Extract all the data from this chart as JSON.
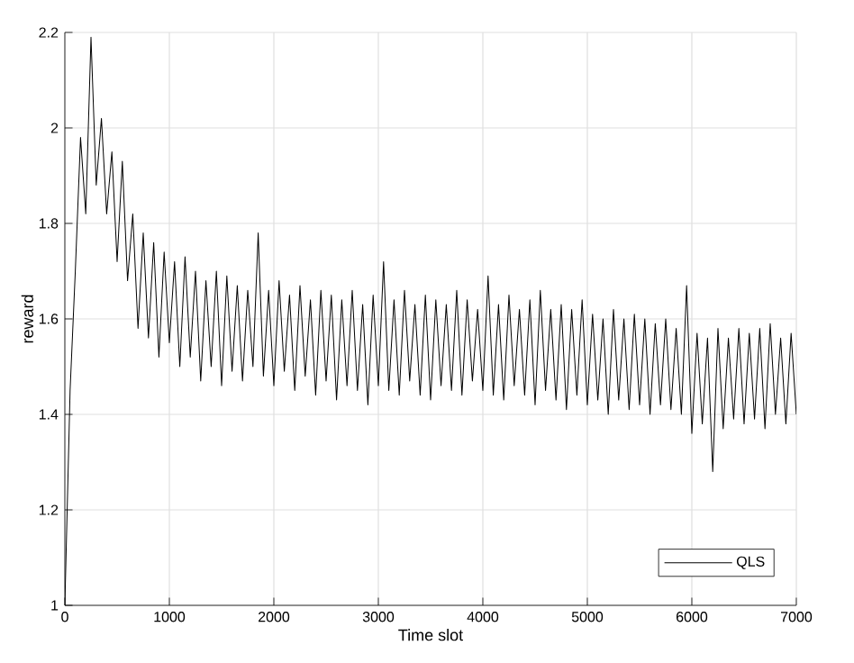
{
  "chart_data": {
    "type": "line",
    "xlabel": "Time slot",
    "ylabel": "reward",
    "xlim": [
      0,
      7000
    ],
    "ylim": [
      1,
      2.2
    ],
    "xticks": [
      0,
      1000,
      2000,
      3000,
      4000,
      5000,
      6000,
      7000
    ],
    "yticks": [
      1,
      1.2,
      1.4,
      1.6,
      1.8,
      2,
      2.2
    ],
    "grid": true,
    "legend": "bottom right",
    "marker": "none",
    "line_style": "solid",
    "series": [
      {
        "name": "QLS",
        "color": "#000000",
        "x": [
          0,
          50,
          100,
          150,
          200,
          250,
          300,
          350,
          400,
          450,
          500,
          550,
          600,
          650,
          700,
          750,
          800,
          850,
          900,
          950,
          1000,
          1050,
          1100,
          1150,
          1200,
          1250,
          1300,
          1350,
          1400,
          1450,
          1500,
          1550,
          1600,
          1650,
          1700,
          1750,
          1800,
          1850,
          1900,
          1950,
          2000,
          2050,
          2100,
          2150,
          2200,
          2250,
          2300,
          2350,
          2400,
          2450,
          2500,
          2550,
          2600,
          2650,
          2700,
          2750,
          2800,
          2850,
          2900,
          2950,
          3000,
          3050,
          3100,
          3150,
          3200,
          3250,
          3300,
          3350,
          3400,
          3450,
          3500,
          3550,
          3600,
          3650,
          3700,
          3750,
          3800,
          3850,
          3900,
          3950,
          4000,
          4050,
          4100,
          4150,
          4200,
          4250,
          4300,
          4350,
          4400,
          4450,
          4500,
          4550,
          4600,
          4650,
          4700,
          4750,
          4800,
          4850,
          4900,
          4950,
          5000,
          5050,
          5100,
          5150,
          5200,
          5250,
          5300,
          5350,
          5400,
          5450,
          5500,
          5550,
          5600,
          5650,
          5700,
          5750,
          5800,
          5850,
          5900,
          5950,
          6000,
          6050,
          6100,
          6150,
          6200,
          6250,
          6300,
          6350,
          6400,
          6450,
          6500,
          6550,
          6600,
          6650,
          6700,
          6750,
          6800,
          6850,
          6900,
          6950,
          7000
        ],
        "values": [
          1.0,
          1.45,
          1.7,
          1.98,
          1.82,
          2.19,
          1.88,
          2.02,
          1.82,
          1.95,
          1.72,
          1.93,
          1.68,
          1.82,
          1.58,
          1.78,
          1.56,
          1.76,
          1.52,
          1.74,
          1.55,
          1.72,
          1.5,
          1.73,
          1.52,
          1.7,
          1.47,
          1.68,
          1.5,
          1.7,
          1.46,
          1.69,
          1.49,
          1.67,
          1.47,
          1.66,
          1.5,
          1.78,
          1.48,
          1.66,
          1.46,
          1.68,
          1.49,
          1.65,
          1.45,
          1.67,
          1.48,
          1.64,
          1.44,
          1.66,
          1.47,
          1.65,
          1.43,
          1.64,
          1.46,
          1.66,
          1.45,
          1.63,
          1.42,
          1.65,
          1.46,
          1.72,
          1.45,
          1.64,
          1.44,
          1.66,
          1.47,
          1.63,
          1.44,
          1.65,
          1.43,
          1.64,
          1.46,
          1.63,
          1.45,
          1.66,
          1.44,
          1.64,
          1.47,
          1.62,
          1.45,
          1.69,
          1.44,
          1.63,
          1.43,
          1.65,
          1.46,
          1.62,
          1.44,
          1.64,
          1.42,
          1.66,
          1.45,
          1.62,
          1.43,
          1.63,
          1.41,
          1.62,
          1.44,
          1.64,
          1.42,
          1.61,
          1.43,
          1.6,
          1.4,
          1.62,
          1.43,
          1.6,
          1.41,
          1.61,
          1.42,
          1.6,
          1.4,
          1.59,
          1.42,
          1.6,
          1.41,
          1.58,
          1.4,
          1.67,
          1.36,
          1.57,
          1.38,
          1.56,
          1.28,
          1.58,
          1.37,
          1.56,
          1.39,
          1.58,
          1.38,
          1.57,
          1.39,
          1.58,
          1.37,
          1.59,
          1.4,
          1.56,
          1.38,
          1.57,
          1.4
        ]
      }
    ]
  }
}
